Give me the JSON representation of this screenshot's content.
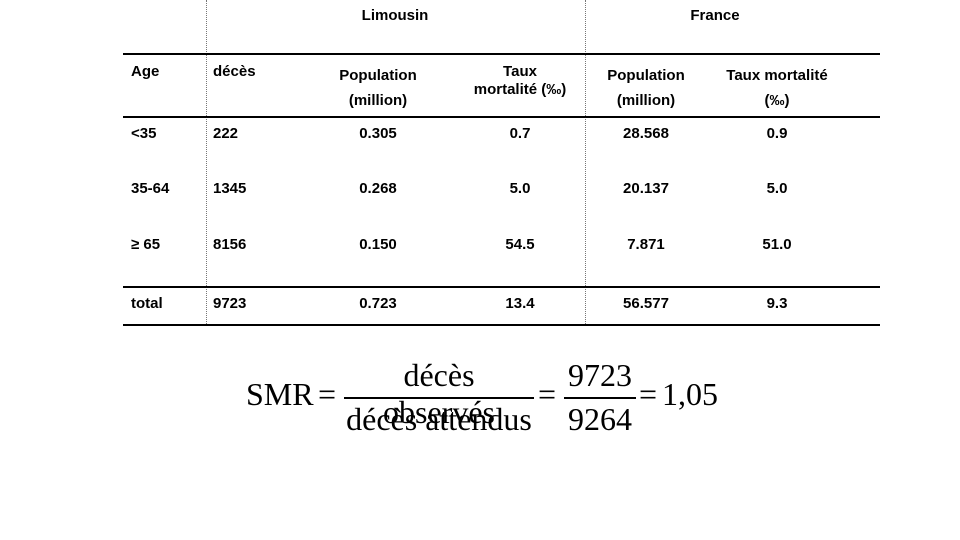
{
  "table": {
    "group_headers": {
      "limousin": "Limousin",
      "france": "France"
    },
    "columns": {
      "age": "Age",
      "deces": "décès",
      "lim_pop_1": "Population",
      "lim_pop_2": "(million)",
      "lim_taux_1": "Taux",
      "lim_taux_2": "mortalité (‰)",
      "fr_pop_1": "Population",
      "fr_pop_2": "(million)",
      "fr_taux_1": "Taux mortalité",
      "fr_taux_2": "(‰)"
    },
    "rows": [
      {
        "age": "<35",
        "deces": "222",
        "lim_pop": "0.305",
        "lim_taux": "0.7",
        "fr_pop": "28.568",
        "fr_taux": "0.9"
      },
      {
        "age": "35-64",
        "deces": "1345",
        "lim_pop": "0.268",
        "lim_taux": "5.0",
        "fr_pop": "20.137",
        "fr_taux": "5.0"
      },
      {
        "age": "≥ 65",
        "deces": "8156",
        "lim_pop": "0.150",
        "lim_taux": "54.5",
        "fr_pop": "7.871",
        "fr_taux": "51.0"
      }
    ],
    "total": {
      "age": "total",
      "deces": "9723",
      "lim_pop": "0.723",
      "lim_taux": "13.4",
      "fr_pop": "56.577",
      "fr_taux": "9.3"
    }
  },
  "formula": {
    "lhs": "SMR",
    "eq": "=",
    "numerator_text": "décès observés",
    "denominator_text": "décès attendus",
    "numerator_value": "9723",
    "denominator_value": "9264",
    "result": "1,05"
  }
}
